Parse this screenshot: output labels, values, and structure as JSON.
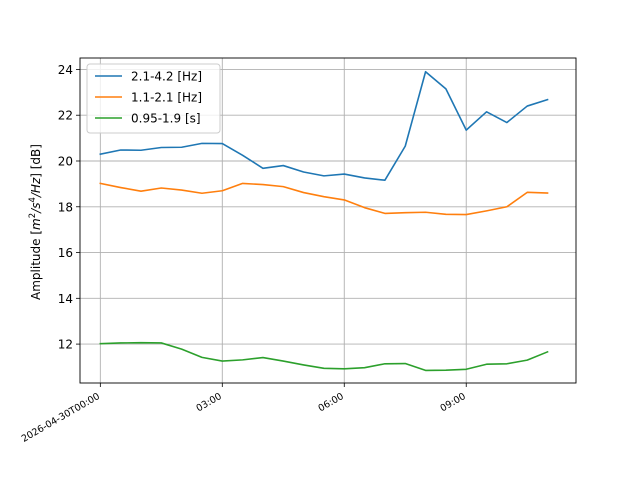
{
  "chart_data": {
    "type": "line",
    "xlabel": "",
    "ylabel": "Amplitude [m²/s⁴/Hz] [dB]",
    "ylabel_parts": {
      "prefix": "Amplitude [",
      "m": "m",
      "two": "2",
      "s": "/s",
      "four": "4",
      "hz": "/Hz",
      "suffix": "] [dB]"
    },
    "xlim": [
      -0.5,
      11.7
    ],
    "ylim": [
      10.3,
      24.5
    ],
    "x_unit": "hours since 2026-04-30T00:00",
    "x_ticks": [
      {
        "value": 0,
        "label": "2026-04-30T00:00"
      },
      {
        "value": 3,
        "label": "03:00"
      },
      {
        "value": 6,
        "label": "06:00"
      },
      {
        "value": 9,
        "label": "09:00"
      }
    ],
    "y_ticks": [
      {
        "value": 12,
        "label": "12"
      },
      {
        "value": 14,
        "label": "14"
      },
      {
        "value": 16,
        "label": "16"
      },
      {
        "value": 18,
        "label": "18"
      },
      {
        "value": 20,
        "label": "20"
      },
      {
        "value": 22,
        "label": "22"
      },
      {
        "value": 24,
        "label": "24"
      }
    ],
    "grid": true,
    "legend_position": "upper-left",
    "x": [
      0,
      0.5,
      1,
      1.5,
      2,
      2.5,
      3,
      3.5,
      4,
      4.5,
      5,
      5.5,
      6,
      6.5,
      7,
      7.5,
      8,
      8.5,
      9,
      9.5,
      10,
      10.5,
      11
    ],
    "series": [
      {
        "name": "2.1-4.2 [Hz]",
        "color": "#1f77b4",
        "values": [
          20.3,
          20.48,
          20.47,
          20.59,
          20.6,
          20.77,
          20.76,
          20.25,
          19.68,
          19.8,
          19.52,
          19.35,
          19.43,
          19.26,
          19.16,
          20.65,
          23.9,
          23.15,
          21.35,
          22.15,
          21.68,
          22.4,
          22.68
        ]
      },
      {
        "name": "1.1-2.1 [Hz]",
        "color": "#ff7f0e",
        "values": [
          19.02,
          18.84,
          18.68,
          18.82,
          18.73,
          18.59,
          18.7,
          19.02,
          18.97,
          18.88,
          18.62,
          18.44,
          18.3,
          17.96,
          17.71,
          17.74,
          17.76,
          17.67,
          17.66,
          17.82,
          18.0,
          18.63,
          18.6
        ]
      },
      {
        "name": "0.95-1.9 [s]",
        "color": "#2ca02c",
        "values": [
          12.02,
          12.05,
          12.06,
          12.05,
          11.78,
          11.42,
          11.26,
          11.31,
          11.41,
          11.26,
          11.09,
          10.94,
          10.92,
          10.97,
          11.14,
          11.15,
          10.85,
          10.86,
          10.9,
          11.12,
          11.14,
          11.3,
          11.66
        ]
      }
    ]
  }
}
